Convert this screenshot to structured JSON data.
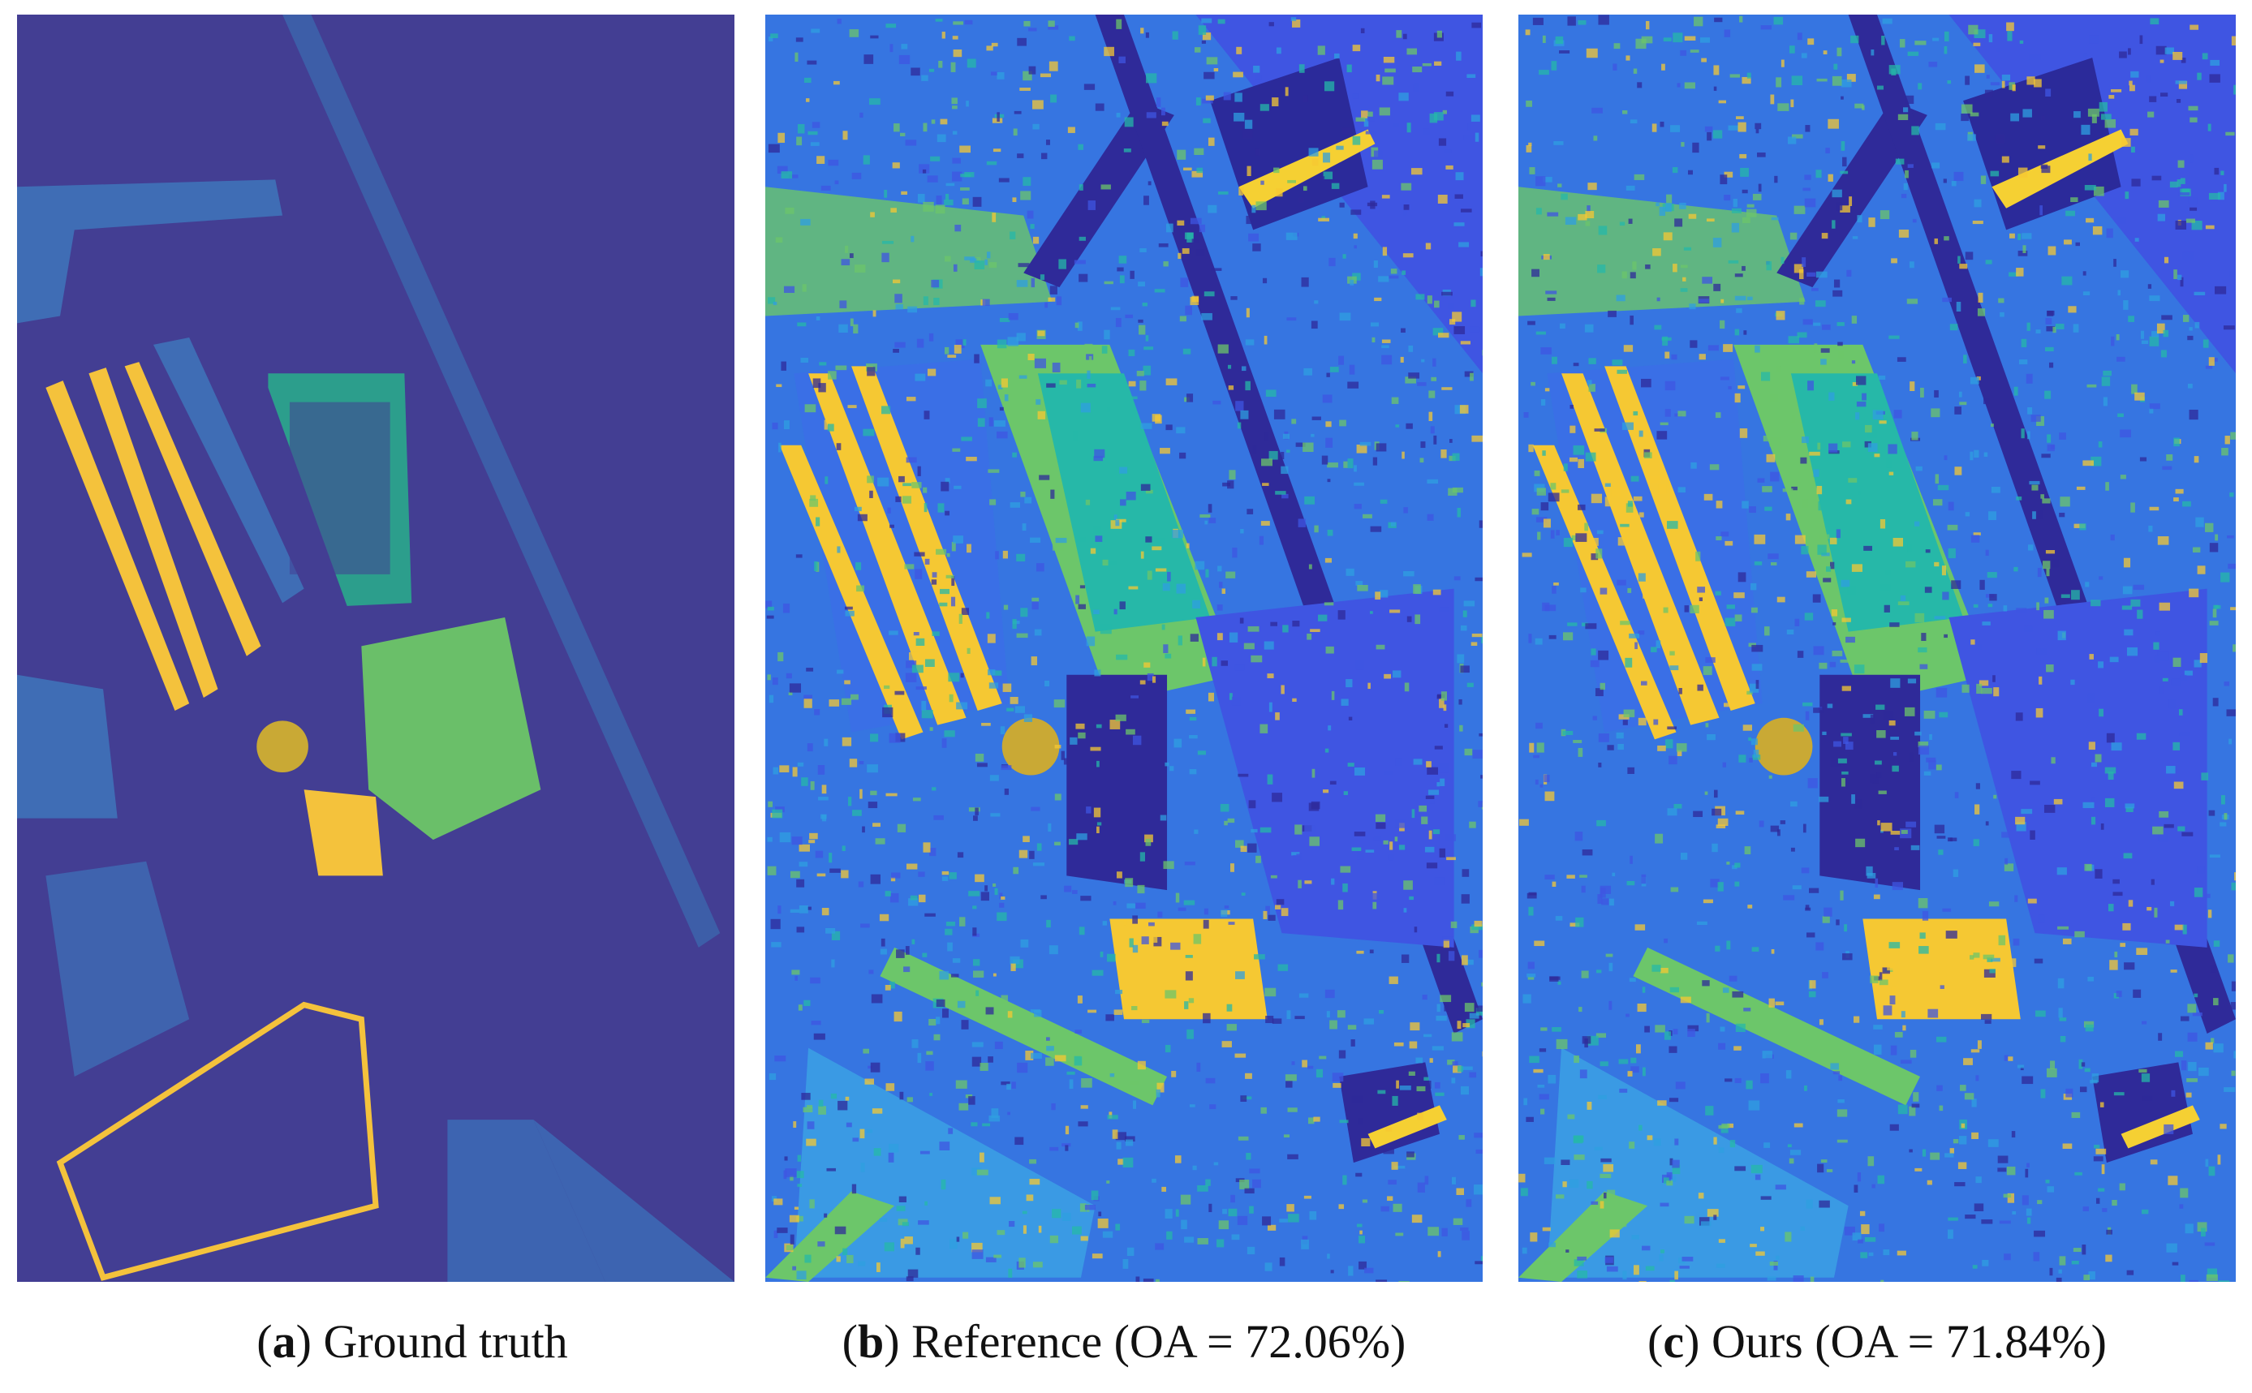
{
  "panels": [
    {
      "caption": [
        "(",
        "a",
        ") Ground truth"
      ]
    },
    {
      "caption": [
        "(",
        "b",
        ") Reference (OA = 72.06%)"
      ]
    },
    {
      "caption": [
        "(",
        "c",
        ") Ours (OA = 71.84%)"
      ]
    }
  ]
}
